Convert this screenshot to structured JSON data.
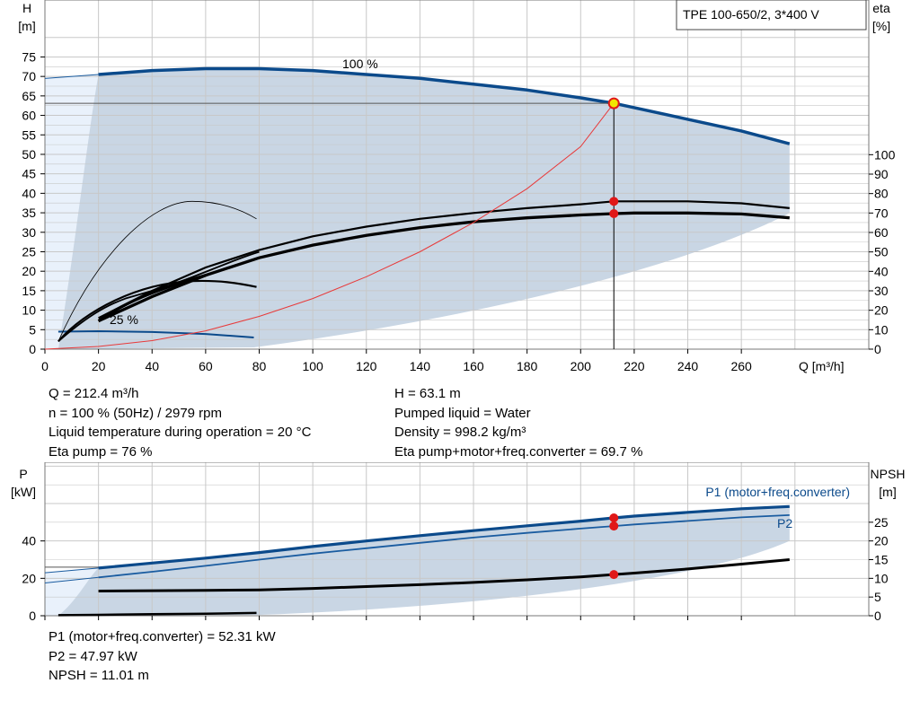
{
  "colors": {
    "grid": "#c8c8c8",
    "field_light": "#e9f1fb",
    "field_region": "#c9d6e4",
    "curve_blue": "#0b4a8b",
    "curve_thin_blue": "#1a5ca0",
    "curve_black": "#000000",
    "system_curve": "#e83a3a",
    "op_point": "#e01818",
    "op_point_marker_fill": "#f2e600"
  },
  "title_box": "TPE 100-650/2, 3*400 V",
  "head_chart": {
    "y_axis_title": "H",
    "y_axis_unit": "[m]",
    "y2_axis_title": "eta",
    "y2_axis_unit": "[%]",
    "x_axis_label": "Q [m³/h]",
    "x_ticks": [
      "0",
      "20",
      "40",
      "60",
      "80",
      "100",
      "120",
      "140",
      "160",
      "180",
      "200",
      "220",
      "240",
      "260"
    ],
    "y_ticks": [
      "0",
      "5",
      "10",
      "15",
      "20",
      "25",
      "30",
      "35",
      "40",
      "45",
      "50",
      "55",
      "60",
      "65",
      "70",
      "75"
    ],
    "y2_ticks": [
      "0",
      "10",
      "20",
      "30",
      "40",
      "50",
      "60",
      "70",
      "80",
      "90",
      "100"
    ],
    "label_100": "100 %",
    "label_25": "25 %"
  },
  "info_left": [
    "Q = 212.4 m³/h",
    "n = 100 % (50Hz) / 2979 rpm",
    "Liquid temperature during operation = 20 °C",
    "Eta pump = 76 %"
  ],
  "info_right": [
    "H = 63.1 m",
    "Pumped liquid = Water",
    "Density = 998.2 kg/m³",
    "Eta pump+motor+freq.converter = 69.7 %"
  ],
  "power_chart": {
    "y_axis_title": "P",
    "y_axis_unit": "[kW]",
    "y2_axis_title": "NPSH",
    "y2_axis_unit": "[m]",
    "y_ticks": [
      "0",
      "20",
      "40"
    ],
    "y2_ticks": [
      "0",
      "5",
      "10",
      "15",
      "20",
      "25"
    ],
    "label_p1": "P1 (motor+freq.converter)",
    "label_p2": "P2"
  },
  "results": [
    "P1 (motor+freq.converter) = 52.31 kW",
    "P2 = 47.97 kW",
    "NPSH = 11.01 m"
  ],
  "chart_data": [
    {
      "type": "line",
      "title": "TPE 100-650/2, 3*400 V",
      "xlabel": "Q [m³/h]",
      "ylabel": "H [m]",
      "y2label": "eta [%]",
      "xlim": [
        0,
        295
      ],
      "ylim": [
        0,
        75
      ],
      "y2lim": [
        0,
        100
      ],
      "grid": true,
      "series": [
        {
          "name": "100 %",
          "axis": "H",
          "x": [
            0,
            20,
            40,
            60,
            80,
            100,
            120,
            140,
            160,
            180,
            200,
            212.4,
            220,
            240,
            260,
            278
          ],
          "y": [
            69.5,
            70.5,
            71.5,
            72.0,
            72.0,
            71.5,
            70.5,
            69.5,
            68.0,
            66.5,
            64.5,
            63.1,
            62.0,
            59.0,
            56.0,
            52.7
          ]
        },
        {
          "axis": "H",
          "x": [
            5,
            20,
            40,
            60,
            78
          ],
          "y": [
            4.5,
            4.6,
            4.4,
            3.9,
            3.0
          ]
        },
        {
          "axis": "eta",
          "x": [
            20,
            40,
            60,
            80,
            100,
            120,
            140,
            160,
            180,
            200,
            212.4,
            220,
            240,
            260,
            278
          ],
          "y": [
            16,
            30,
            42,
            51,
            58,
            63,
            67,
            70,
            72.5,
            74.5,
            76,
            76,
            76,
            75,
            72.5
          ]
        },
        {
          "axis": "eta",
          "x": [
            20,
            40,
            60,
            80,
            100,
            120,
            140,
            160,
            180,
            200,
            212.4,
            220,
            240,
            260,
            278
          ],
          "y": [
            14.5,
            27,
            38,
            47,
            53.5,
            58.5,
            62.5,
            65.5,
            67.5,
            69,
            69.7,
            70,
            70,
            69.5,
            67.5
          ]
        },
        {
          "axis": "eta",
          "x": [
            5,
            20,
            40,
            55,
            70,
            79
          ],
          "y": [
            4,
            42,
            68,
            76,
            74,
            67
          ]
        },
        {
          "axis": "eta",
          "x": [
            5,
            20,
            40,
            60,
            79
          ],
          "y": [
            4,
            20,
            34,
            35,
            32
          ]
        },
        {
          "axis": "H",
          "x": [
            0,
            20,
            40,
            60,
            80,
            100,
            120,
            140,
            160,
            180,
            200,
            212.4
          ],
          "y": [
            0,
            0.7,
            2.2,
            4.7,
            8.4,
            13.0,
            18.6,
            25.0,
            32.5,
            41.2,
            52.0,
            63.1
          ]
        }
      ],
      "operating_point": {
        "Q": 212.4,
        "H": 63.1,
        "eta_pump": 76,
        "eta_total": 69.7
      }
    },
    {
      "type": "line",
      "ylabel": "P [kW]",
      "y2label": "NPSH [m]",
      "xlim": [
        0,
        295
      ],
      "ylim": [
        0,
        58
      ],
      "y2lim": [
        0,
        29
      ],
      "grid": true,
      "series": [
        {
          "name": "P1 (motor+freq.converter)",
          "axis": "P",
          "x": [
            0,
            20,
            40,
            60,
            80,
            100,
            120,
            140,
            160,
            180,
            200,
            212.4,
            220,
            240,
            260,
            278
          ],
          "y": [
            23,
            25.5,
            28.2,
            30.8,
            33.8,
            37.0,
            40.0,
            42.8,
            45.5,
            48.1,
            50.6,
            52.31,
            53.3,
            55.3,
            57.2,
            58.4
          ]
        },
        {
          "name": "P2",
          "axis": "P",
          "x": [
            0,
            20,
            40,
            60,
            80,
            100,
            120,
            140,
            160,
            180,
            200,
            212.4,
            220,
            240,
            260,
            278
          ],
          "y": [
            17.5,
            20.5,
            23.5,
            26.7,
            30.0,
            33.2,
            36.1,
            39.0,
            41.8,
            44.3,
            46.6,
            47.97,
            48.8,
            50.7,
            52.6,
            53.8
          ]
        },
        {
          "axis": "NPSH",
          "x": [
            5,
            20,
            40,
            60,
            80,
            100,
            120,
            140,
            160,
            180,
            200,
            212.4,
            220,
            240,
            260,
            278
          ],
          "y": [
            6.5,
            6.6,
            6.7,
            6.8,
            6.9,
            7.3,
            7.8,
            8.3,
            8.9,
            9.6,
            10.4,
            11.01,
            11.4,
            12.5,
            13.8,
            15.0
          ]
        },
        {
          "axis": "P",
          "x": [
            5,
            20,
            40,
            60,
            79
          ],
          "y": [
            0.3,
            0.5,
            0.8,
            1.1,
            1.5
          ]
        }
      ],
      "operating_point": {
        "Q": 212.4,
        "P1": 52.31,
        "P2": 47.97,
        "NPSH": 11.01
      }
    }
  ]
}
